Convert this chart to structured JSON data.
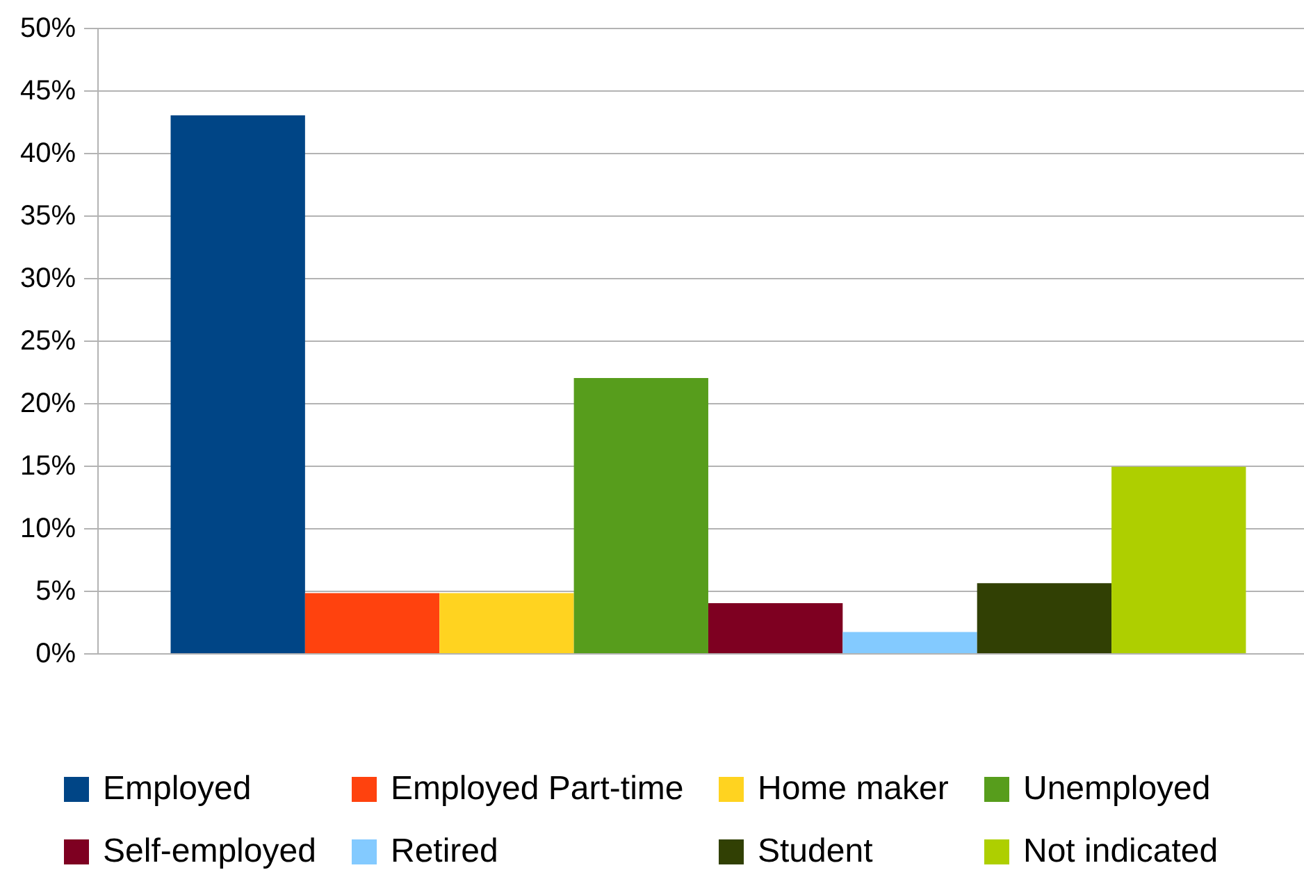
{
  "chart_data": {
    "type": "bar",
    "categories": [
      null
    ],
    "series": [
      {
        "name": "Employed",
        "color": "#004586",
        "values": [
          43
        ]
      },
      {
        "name": "Employed Part-time",
        "color": "#ff420e",
        "values": [
          4.8
        ]
      },
      {
        "name": "Home maker",
        "color": "#ffd320",
        "values": [
          4.8
        ]
      },
      {
        "name": "Unemployed",
        "color": "#579d1c",
        "values": [
          22
        ]
      },
      {
        "name": "Self-employed",
        "color": "#7e0021",
        "values": [
          4
        ]
      },
      {
        "name": "Retired",
        "color": "#83caff",
        "values": [
          1.7
        ]
      },
      {
        "name": "Student",
        "color": "#314004",
        "values": [
          5.6
        ]
      },
      {
        "name": "Not indicated",
        "color": "#aecf00",
        "values": [
          14.9
        ]
      }
    ],
    "ylim": [
      0,
      50
    ],
    "yticks": [
      {
        "value": 0,
        "label": "0%"
      },
      {
        "value": 5,
        "label": "5%"
      },
      {
        "value": 10,
        "label": "10%"
      },
      {
        "value": 15,
        "label": "15%"
      },
      {
        "value": 20,
        "label": "20%"
      },
      {
        "value": 25,
        "label": "25%"
      },
      {
        "value": 30,
        "label": "30%"
      },
      {
        "value": 35,
        "label": "35%"
      },
      {
        "value": 40,
        "label": "40%"
      },
      {
        "value": 45,
        "label": "45%"
      },
      {
        "value": 50,
        "label": "50%"
      }
    ],
    "grid": true,
    "legend": "bottom",
    "tick_labels": "y"
  }
}
